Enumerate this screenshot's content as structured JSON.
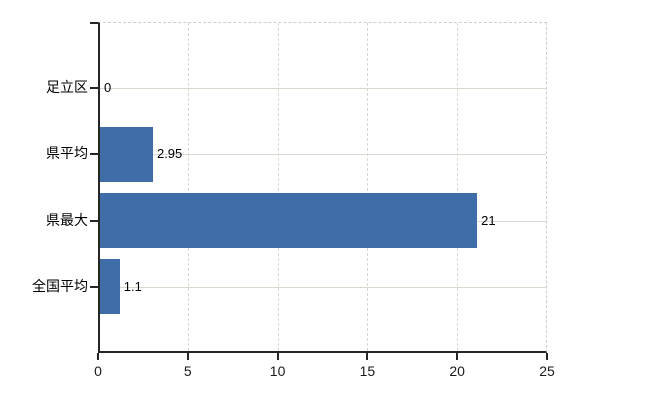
{
  "chart_data": {
    "type": "bar",
    "orientation": "horizontal",
    "title": "",
    "xlabel": "",
    "ylabel": "",
    "categories": [
      "足立区",
      "県平均",
      "県最大",
      "全国平均"
    ],
    "values": [
      0,
      2.95,
      21,
      1.1
    ],
    "value_labels": [
      "0",
      "2.95",
      "21",
      "1.1"
    ],
    "x_ticks": [
      "0",
      "5",
      "10",
      "15",
      "20",
      "25"
    ],
    "x_tick_values": [
      0,
      5,
      10,
      15,
      20,
      25
    ],
    "xlim": [
      0,
      25
    ],
    "grid": true,
    "legend": "none",
    "bar_color": "#3e6da7",
    "hgrid_color": "#d6d9cd",
    "vgrid_color": "#d7d7d0",
    "frame_dash_color": "#cfcfc7",
    "axis_color": "#262626",
    "text_color": "#000000"
  }
}
